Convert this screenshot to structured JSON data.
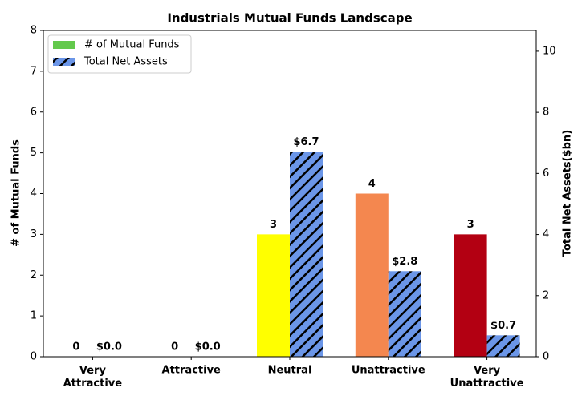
{
  "chart_data": {
    "type": "bar",
    "title": "Industrials Mutual Funds Landscape",
    "categories": [
      "Very Attractive",
      "Attractive",
      "Neutral",
      "Unattractive",
      "Very Unattractive"
    ],
    "ylabel": "# of Mutual Funds",
    "y2label": "Total Net Assets($bn)",
    "ylim": [
      0,
      8
    ],
    "yticks": [
      0,
      1,
      2,
      3,
      4,
      5,
      6,
      7,
      8
    ],
    "y2lim": [
      0,
      10.68
    ],
    "y2ticks": [
      0,
      2,
      4,
      6,
      8,
      10
    ],
    "legend": "upper left",
    "series": [
      {
        "name": "# of Mutual Funds",
        "color": "#63c94c",
        "colors": [
          "#63c94c",
          "#63c94c",
          "#ffff00",
          "#f4874f",
          "#b30012"
        ],
        "values": [
          0,
          0,
          3,
          4,
          3
        ]
      },
      {
        "name": "Total Net Assets",
        "color": "#6b96e8",
        "hatch": true,
        "axis": "y2",
        "values": [
          0,
          0,
          6.7,
          2.8,
          0.7
        ],
        "value_labels": [
          "$0.0",
          "$0.0",
          "$6.7",
          "$2.8",
          "$0.7"
        ]
      }
    ]
  }
}
